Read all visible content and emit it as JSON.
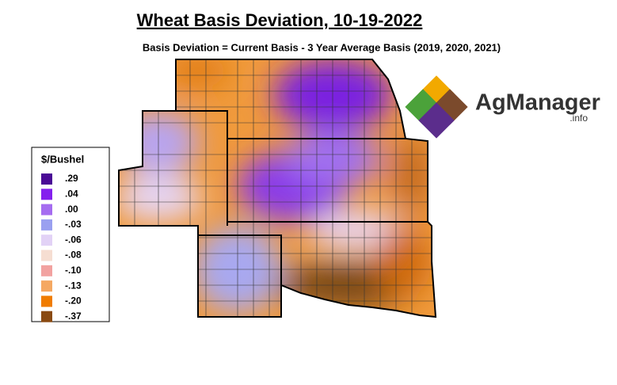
{
  "header": {
    "title": "Wheat Basis Deviation, 10-19-2022",
    "subtitle": "Basis Deviation = Current Basis - 3 Year Average Basis (2019, 2020, 2021)"
  },
  "legend": {
    "title": "$/Bushel",
    "items": [
      {
        "label": ".29",
        "color": "#4a0a96"
      },
      {
        "label": ".04",
        "color": "#8420ee"
      },
      {
        "label": ".00",
        "color": "#a56cf0"
      },
      {
        "label": "-.03",
        "color": "#9aa0f0"
      },
      {
        "label": "-.06",
        "color": "#e2d2f6"
      },
      {
        "label": "-.08",
        "color": "#f6ded2"
      },
      {
        "label": "-.10",
        "color": "#f2a2a0"
      },
      {
        "label": "-.13",
        "color": "#f5a862"
      },
      {
        "label": "-.20",
        "color": "#f07c00"
      },
      {
        "label": "-.37",
        "color": "#8a4a12"
      }
    ]
  },
  "logo": {
    "name": "AgManager",
    "suffix": ".info"
  }
}
